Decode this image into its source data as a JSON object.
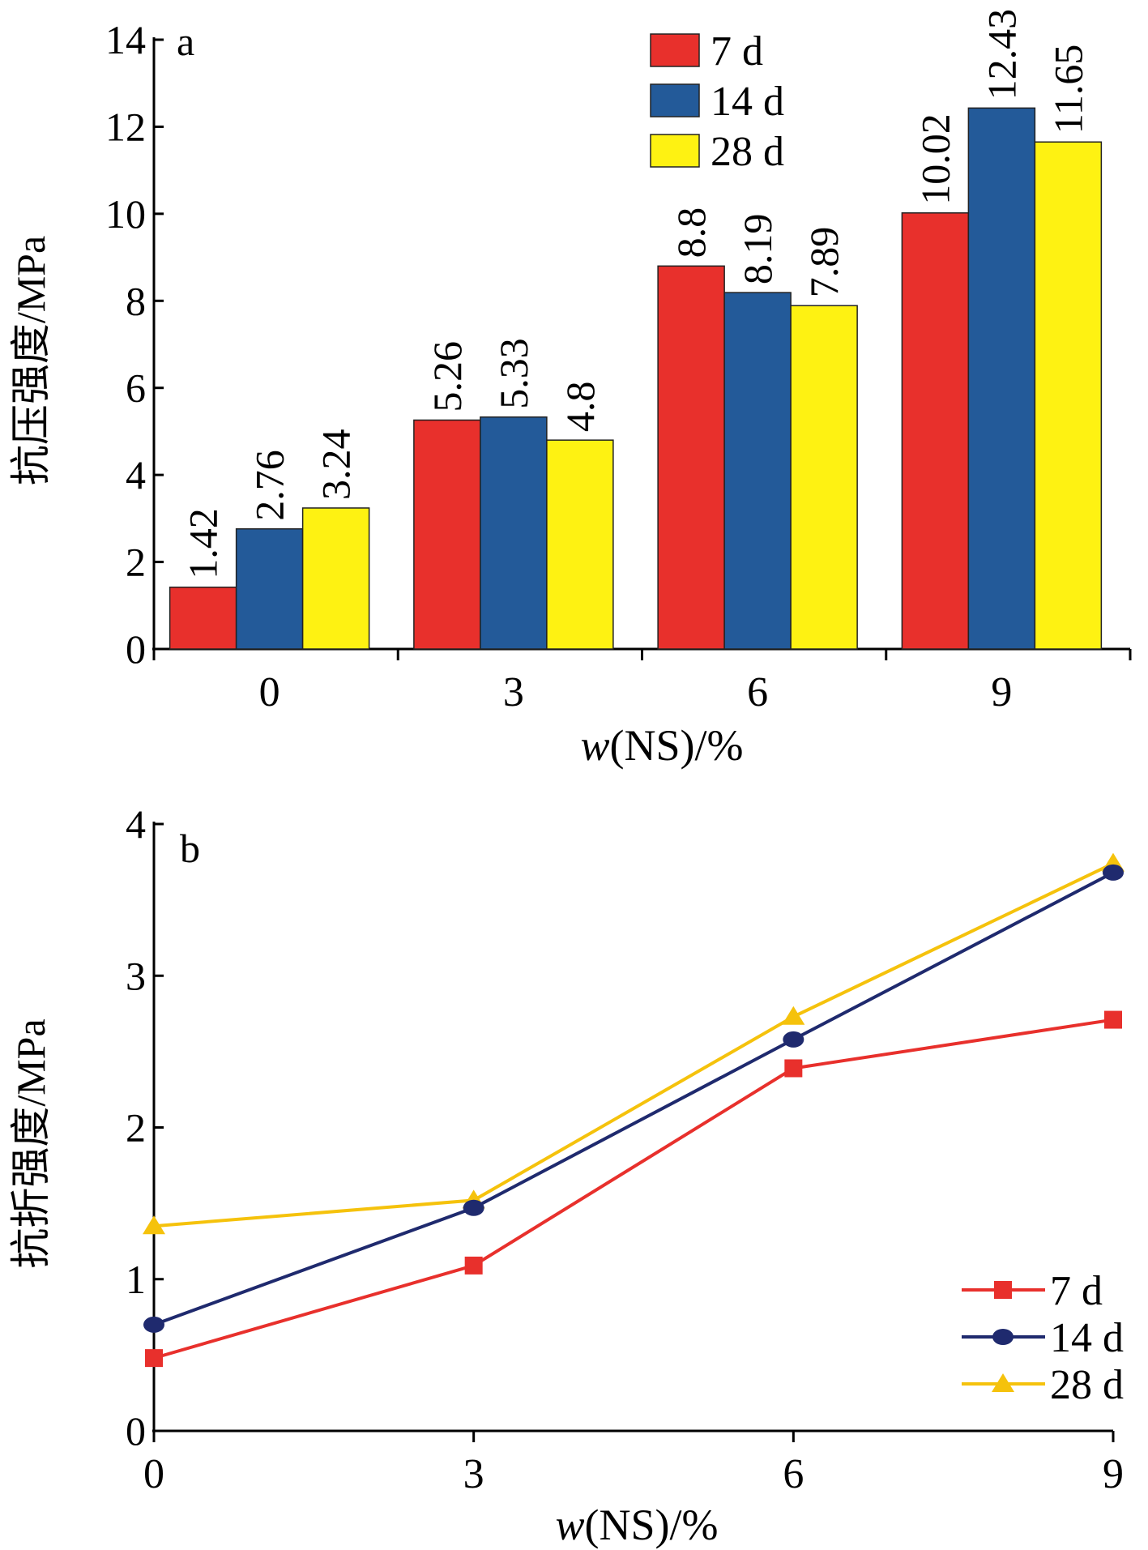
{
  "chart_data": [
    {
      "type": "bar",
      "panel_label": "a",
      "xlabel_italic": "w",
      "xlabel_rest": "(NS)/%",
      "ylabel": "抗压强度/MPa",
      "categories": [
        "0",
        "3",
        "6",
        "9"
      ],
      "ylim": [
        0,
        14
      ],
      "yticks": [
        0,
        2,
        4,
        6,
        8,
        10,
        12,
        14
      ],
      "legend_position": "top-right",
      "series": [
        {
          "name": "7 d",
          "color": "#e8302c",
          "values": [
            1.42,
            5.26,
            8.8,
            10.02
          ],
          "labels": [
            "1.42",
            "5.26",
            "8.8",
            "10.02"
          ]
        },
        {
          "name": "14 d",
          "color": "#235a99",
          "values": [
            2.76,
            5.33,
            8.19,
            12.43
          ],
          "labels": [
            "2.76",
            "5.33",
            "8.19",
            "12.43"
          ]
        },
        {
          "name": "28 d",
          "color": "#fef212",
          "values": [
            3.24,
            4.8,
            7.89,
            11.65
          ],
          "labels": [
            "3.24",
            "4.8",
            "7.89",
            "11.65"
          ]
        }
      ]
    },
    {
      "type": "line",
      "panel_label": "b",
      "xlabel_italic": "w",
      "xlabel_rest": "(NS)/%",
      "ylabel": "抗折强度/MPa",
      "x": [
        0,
        3,
        6,
        9
      ],
      "xlim": [
        0,
        9
      ],
      "xticks": [
        0,
        3,
        6,
        9
      ],
      "ylim": [
        0,
        4
      ],
      "yticks": [
        0,
        1,
        2,
        3,
        4
      ],
      "legend_position": "bottom-right",
      "series": [
        {
          "name": "7 d",
          "color": "#e8302c",
          "marker": "square",
          "values": [
            0.48,
            1.09,
            2.39,
            2.71
          ]
        },
        {
          "name": "14 d",
          "color": "#1f2a6e",
          "marker": "circle",
          "values": [
            0.7,
            1.47,
            2.58,
            3.68
          ]
        },
        {
          "name": "28 d",
          "color": "#f5c20c",
          "marker": "triangle",
          "values": [
            1.35,
            1.52,
            2.73,
            3.74
          ]
        }
      ]
    }
  ]
}
